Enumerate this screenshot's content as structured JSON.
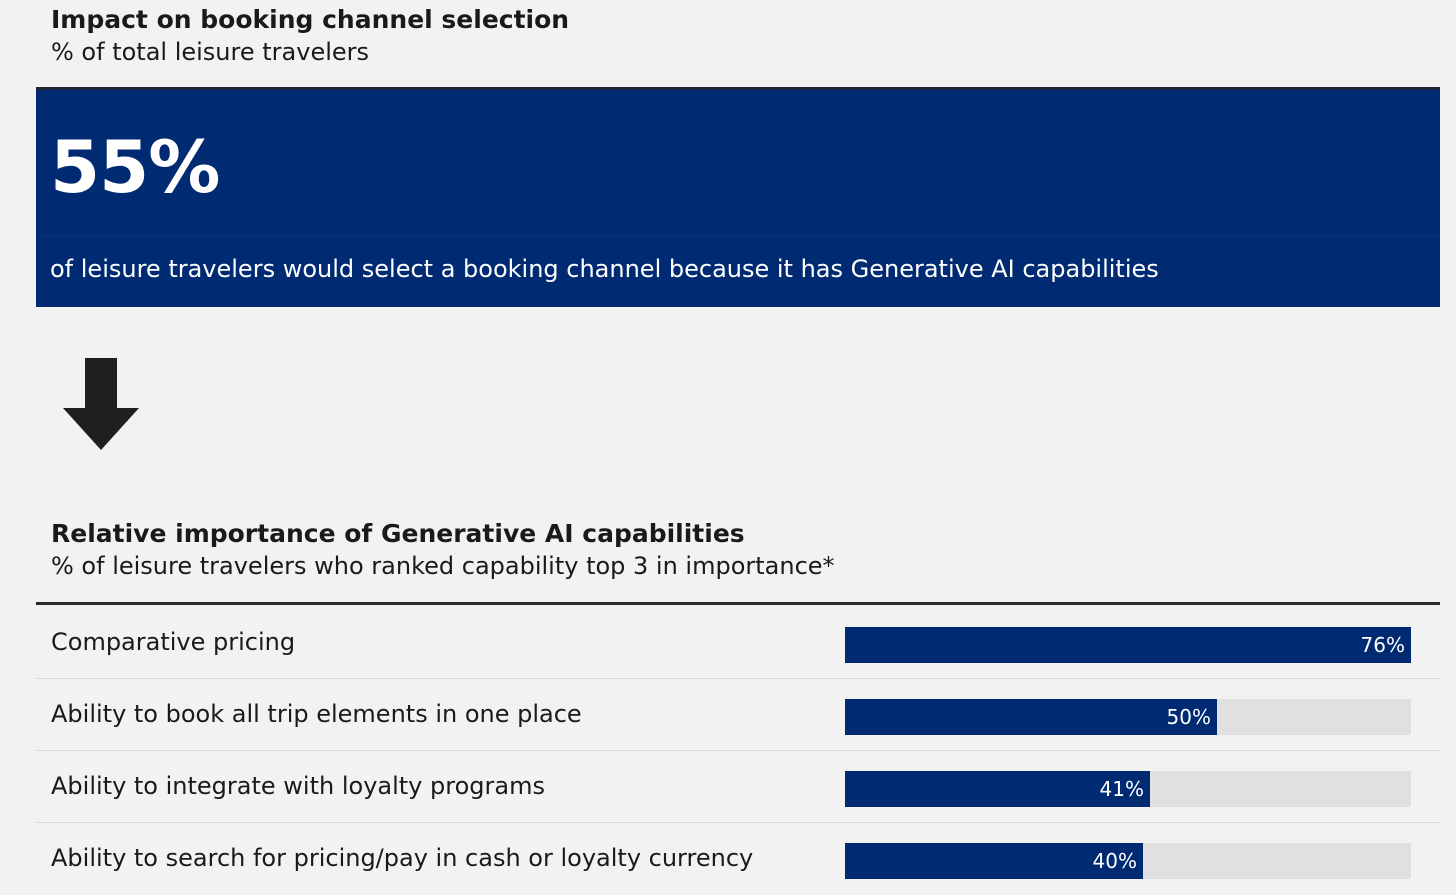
{
  "header": {
    "title": "Impact on booking channel selection",
    "subtitle": "% of total leisure travelers"
  },
  "hero": {
    "stat": "55%",
    "text": "of leisure travelers would select a booking channel because it has Generative AI capabilities"
  },
  "arrow_icon": "down-arrow-icon",
  "colors": {
    "accent": "#002b73",
    "track": "#e0e0e0",
    "background": "#f2f2f2"
  },
  "chart_data": {
    "type": "bar",
    "orientation": "horizontal",
    "title": "Relative importance of Generative AI capabilities",
    "subtitle": "% of leisure travelers who ranked capability top 3 in importance*",
    "categories": [
      "Comparative pricing",
      "Ability to book all trip elements in one place",
      "Ability to integrate with loyalty programs",
      "Ability to search for pricing/pay in cash or loyalty currency"
    ],
    "values": [
      76,
      50,
      41,
      40
    ],
    "value_labels": [
      "76%",
      "50%",
      "41%",
      "40%"
    ],
    "xlim": [
      0,
      76
    ],
    "grid": false
  }
}
